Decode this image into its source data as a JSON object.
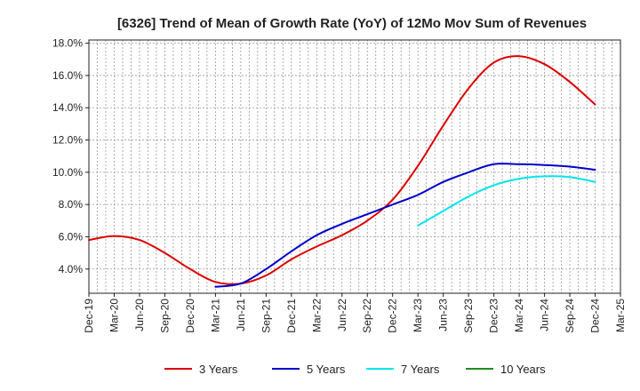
{
  "chart_data": {
    "type": "line",
    "title": "[6326]  Trend of Mean of Growth Rate (YoY) of 12Mo Mov Sum of Revenues",
    "xlabel": "",
    "ylabel": "",
    "x_ticks": [
      "Dec-19",
      "Mar-20",
      "Jun-20",
      "Sep-20",
      "Dec-20",
      "Mar-21",
      "Jun-21",
      "Sep-21",
      "Dec-21",
      "Mar-22",
      "Jun-22",
      "Sep-22",
      "Dec-22",
      "Mar-23",
      "Jun-23",
      "Sep-23",
      "Dec-23",
      "Mar-24",
      "Jun-24",
      "Sep-24",
      "Dec-24",
      "Mar-25"
    ],
    "y_ticks": [
      "4.0%",
      "6.0%",
      "8.0%",
      "10.0%",
      "12.0%",
      "14.0%",
      "16.0%",
      "18.0%"
    ],
    "y_tick_values": [
      4,
      6,
      8,
      10,
      12,
      14,
      16,
      18
    ],
    "ylim": [
      2.5,
      18.2
    ],
    "grid": true,
    "legend_position": "bottom",
    "series": [
      {
        "name": "3 Years",
        "color": "#dd0000",
        "values": [
          5.8,
          6.05,
          5.8,
          5.0,
          4.0,
          3.2,
          3.1,
          3.6,
          4.6,
          5.4,
          6.1,
          7.0,
          8.3,
          10.4,
          12.9,
          15.2,
          16.8,
          17.2,
          16.7,
          15.6,
          14.2,
          null
        ]
      },
      {
        "name": "5 Years",
        "color": "#0000cc",
        "values": [
          null,
          null,
          null,
          null,
          null,
          2.9,
          3.1,
          4.0,
          5.1,
          6.1,
          6.8,
          7.4,
          8.0,
          8.6,
          9.4,
          10.0,
          10.5,
          10.5,
          10.45,
          10.35,
          10.15,
          null
        ]
      },
      {
        "name": "7 Years",
        "color": "#00e5ee",
        "values": [
          null,
          null,
          null,
          null,
          null,
          null,
          null,
          null,
          null,
          null,
          null,
          null,
          null,
          6.7,
          7.6,
          8.5,
          9.2,
          9.6,
          9.75,
          9.7,
          9.4,
          null
        ]
      },
      {
        "name": "10 Years",
        "color": "#228b22",
        "values": [
          null,
          null,
          null,
          null,
          null,
          null,
          null,
          null,
          null,
          null,
          null,
          null,
          null,
          null,
          null,
          null,
          null,
          null,
          null,
          null,
          null,
          null
        ]
      }
    ]
  }
}
